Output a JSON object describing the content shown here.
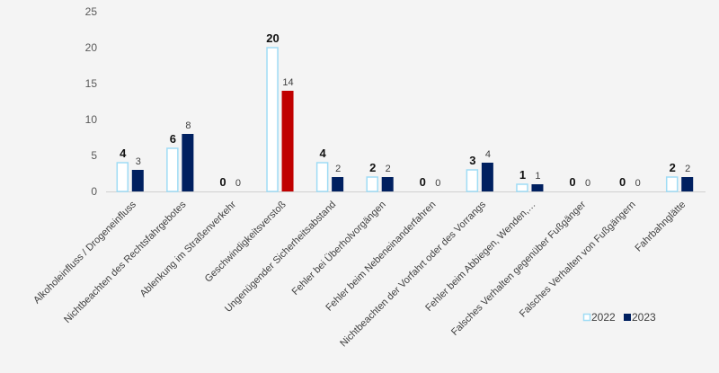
{
  "chart_data": {
    "type": "bar",
    "title": "",
    "xlabel": "",
    "ylabel": "",
    "ylim": [
      0,
      25
    ],
    "yticks": [
      "0",
      "5",
      "10",
      "15",
      "20",
      "25"
    ],
    "grid": false,
    "legend": "bottom-right",
    "categories": [
      "Alkoholeinfluss / Drogeneinfluss",
      "Nichtbeachten des Rechtsfahrgebotes",
      "Ablenkung im Straßenverkehr",
      "Geschwindigkeitsverstoß",
      "Ungenügender Sicherheitsabstand",
      "Fehler bei Überholvorgängen",
      "Fehler beim Nebeneinanderfahren",
      "Nichtbeachten der Vorfahrt oder des Vorrangs",
      "Fehler beim Abbiegen, Wenden,…",
      "Falsches Verhalten gegenüber Fußgänger",
      "Falsches Verhalten von Fußgängern",
      "Fahrbahnglätte"
    ],
    "series": [
      {
        "name": "2022",
        "values": [
          4,
          6,
          0,
          20,
          4,
          2,
          0,
          3,
          1,
          0,
          0,
          2
        ],
        "color": "#ffffff",
        "border": "#9fdcf5"
      },
      {
        "name": "2023",
        "values": [
          3,
          8,
          0,
          14,
          2,
          2,
          0,
          4,
          1,
          0,
          0,
          2
        ],
        "color": "#002060",
        "highlight": {
          "index": 3,
          "color": "#c00000"
        }
      }
    ]
  }
}
